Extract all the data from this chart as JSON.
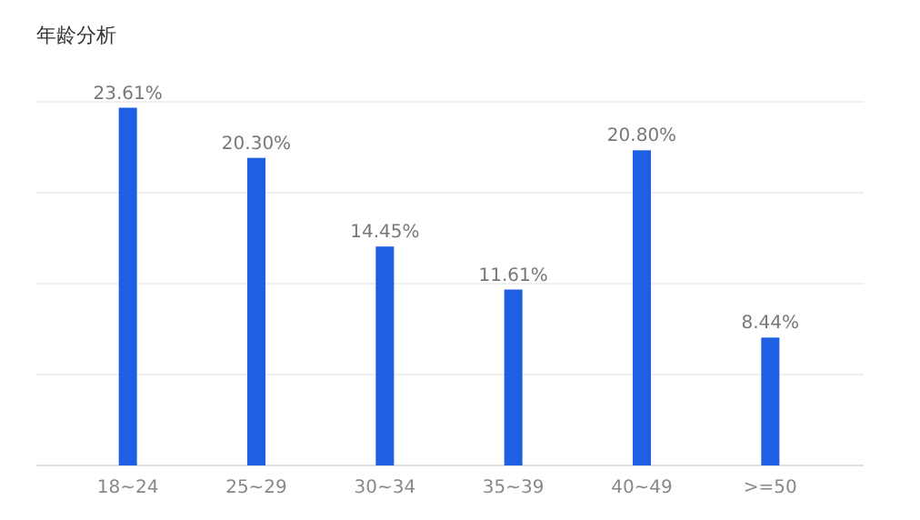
{
  "chart_data": {
    "type": "bar",
    "title": "年龄分析",
    "categories": [
      "18~24",
      "25~29",
      "30~34",
      "35~39",
      "40~49",
      ">=50"
    ],
    "values": [
      23.61,
      20.3,
      14.45,
      11.61,
      20.8,
      8.44
    ],
    "value_labels": [
      "23.61%",
      "20.30%",
      "14.45%",
      "11.61%",
      "20.80%",
      "8.44%"
    ],
    "color": "#1f5fe3",
    "ylim": [
      0,
      24
    ],
    "yticks": [
      {
        "value": 0,
        "label": null
      },
      {
        "value": 6,
        "label": null
      },
      {
        "value": 12,
        "label": null
      },
      {
        "value": 18,
        "label": null
      },
      {
        "value": 24,
        "label": null
      }
    ],
    "grid": "y",
    "tick_labels": "x"
  }
}
